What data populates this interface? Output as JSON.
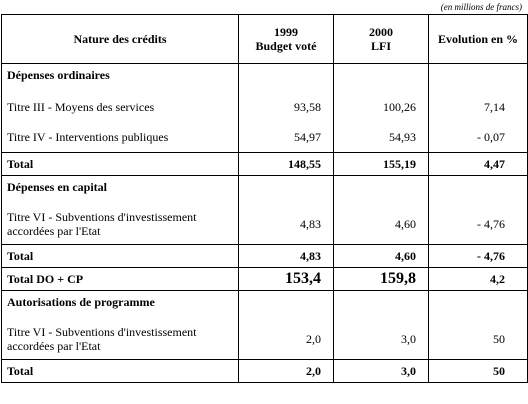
{
  "unit_note": "(en millions de francs)",
  "header": {
    "col1": "Nature des crédits",
    "col2_line1": "1999",
    "col2_line2": "Budget voté",
    "col3_line1": "2000",
    "col3_line2": "LFI",
    "col4": "Evolution en %"
  },
  "sections": {
    "ordinaires": {
      "title": "Dépenses ordinaires",
      "rows": [
        {
          "label": "Titre III - Moyens des services",
          "y1999": "93,58",
          "y2000": "100,26",
          "evol": "7,14"
        },
        {
          "label": "Titre IV - Interventions publiques",
          "y1999": "54,97",
          "y2000": "54,93",
          "evol": "- 0,07"
        }
      ],
      "total": {
        "label": "Total",
        "y1999": "148,55",
        "y2000": "155,19",
        "evol": "4,47"
      }
    },
    "capital": {
      "title": "Dépenses en capital",
      "row": {
        "label_line1": "Titre VI - Subventions d'investissement",
        "label_line2": "accordées par l'Etat",
        "y1999": "4,83",
        "y2000": "4,60",
        "evol": "- 4,76"
      },
      "total": {
        "label": "Total",
        "y1999": "4,83",
        "y2000": "4,60",
        "evol": "- 4,76"
      }
    },
    "docp": {
      "label": "Total DO + CP",
      "y1999": "153,4",
      "y2000": "159,8",
      "evol": "4,2"
    },
    "programme": {
      "title": "Autorisations de programme",
      "row": {
        "label_line1": "Titre VI - Subventions d'investissement",
        "label_line2": "accordées par l'Etat",
        "y1999": "2,0",
        "y2000": "3,0",
        "evol": "50"
      },
      "total": {
        "label": "Total",
        "y1999": "2,0",
        "y2000": "3,0",
        "evol": "50"
      }
    }
  }
}
